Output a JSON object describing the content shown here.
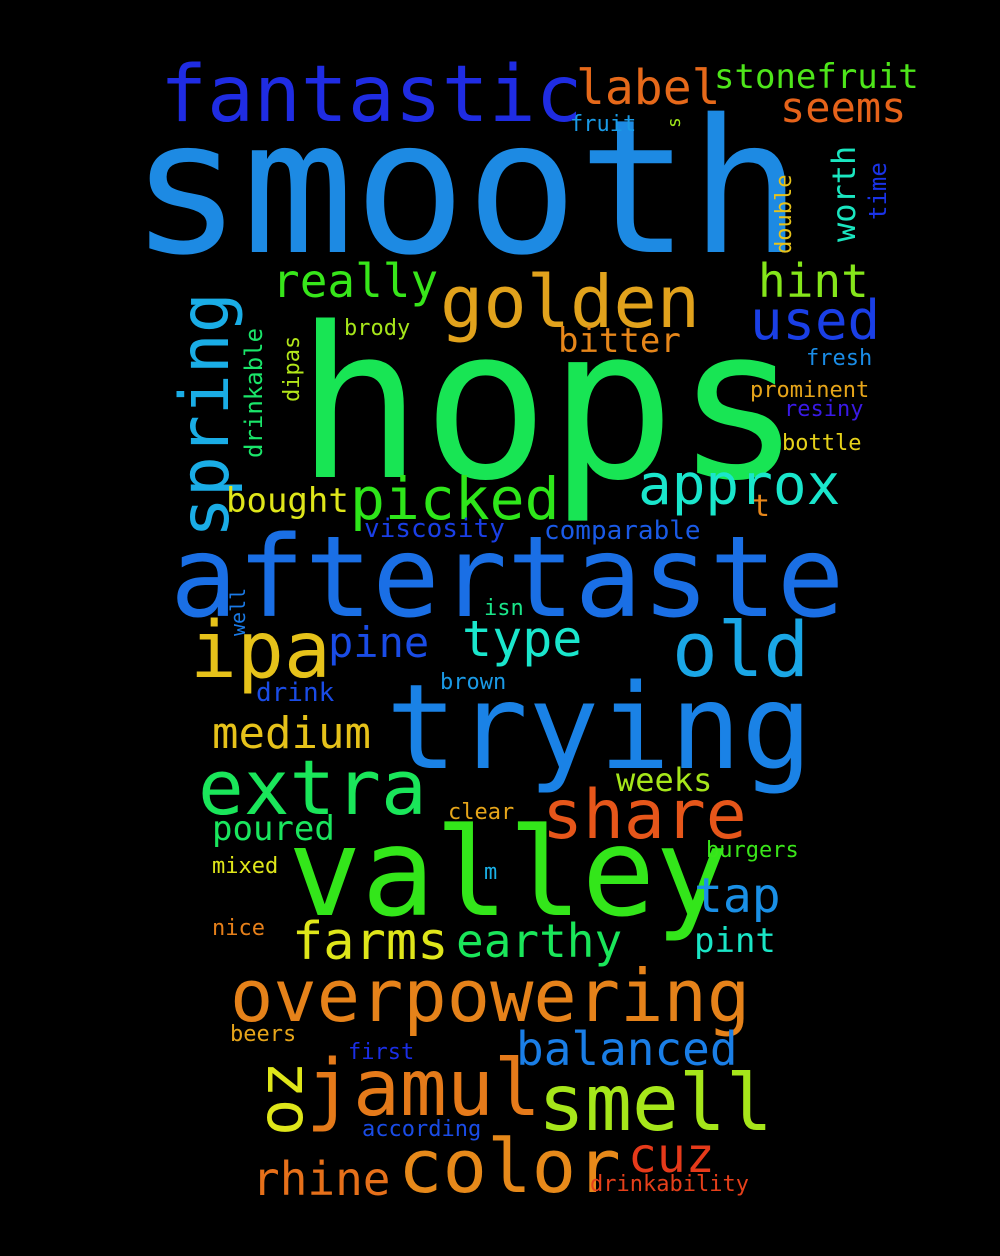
{
  "words": {
    "smooth": {
      "text": "smooth",
      "color": "#1d8ae3"
    },
    "hops": {
      "text": "hops",
      "color": "#18e554"
    },
    "aftertaste": {
      "text": "aftertaste",
      "color": "#1a6fe5"
    },
    "valley": {
      "text": "valley",
      "color": "#33e61a"
    },
    "trying": {
      "text": "trying",
      "color": "#1a82e6"
    },
    "fantastic": {
      "text": "fantastic",
      "color": "#1f2ce3"
    },
    "golden": {
      "text": "golden",
      "color": "#e1a21c"
    },
    "overpowering": {
      "text": "overpowering",
      "color": "#e5821a"
    },
    "jamul": {
      "text": "jamul",
      "color": "#e57a1a"
    },
    "smell": {
      "text": "smell",
      "color": "#a6e61a"
    },
    "color": {
      "text": "color",
      "color": "#e6891a"
    },
    "extra": {
      "text": "extra",
      "color": "#1ae65a"
    },
    "share": {
      "text": "share",
      "color": "#e6561a"
    },
    "spring": {
      "text": "spring",
      "color": "#1aade6"
    },
    "ipa": {
      "text": "ipa",
      "color": "#e6c21a"
    },
    "old": {
      "text": "old",
      "color": "#1aa7e6"
    },
    "approx": {
      "text": "approx",
      "color": "#1ae6cc"
    },
    "picked": {
      "text": "picked",
      "color": "#2ee61a"
    },
    "label": {
      "text": "label",
      "color": "#e6691a"
    },
    "stonefruit": {
      "text": "stonefruit",
      "color": "#4ee61a"
    },
    "seems": {
      "text": "seems",
      "color": "#e6631a"
    },
    "really": {
      "text": "really",
      "color": "#37e61a"
    },
    "hint": {
      "text": "hint",
      "color": "#85e61a"
    },
    "used": {
      "text": "used",
      "color": "#1a3fe6"
    },
    "oz": {
      "text": "oz",
      "color": "#dfe61a"
    },
    "balanced": {
      "text": "balanced",
      "color": "#1a7ee6"
    },
    "cuz": {
      "text": "cuz",
      "color": "#e63a1a"
    },
    "rhine": {
      "text": "rhine",
      "color": "#e6701a"
    },
    "farms": {
      "text": "farms",
      "color": "#dfe61a"
    },
    "earthy": {
      "text": "earthy",
      "color": "#1ae65a"
    },
    "tap": {
      "text": "tap",
      "color": "#1a90e6"
    },
    "pint": {
      "text": "pint",
      "color": "#1ae6c6"
    },
    "medium": {
      "text": "medium",
      "color": "#e6c21a"
    },
    "weeks": {
      "text": "weeks",
      "color": "#a6e61a"
    },
    "poured": {
      "text": "poured",
      "color": "#1ae65e"
    },
    "type": {
      "text": "type",
      "color": "#1ae6cc"
    },
    "pine": {
      "text": "pine",
      "color": "#1a4ce6"
    },
    "bought": {
      "text": "bought",
      "color": "#dfe61a"
    },
    "bitter": {
      "text": "bitter",
      "color": "#e6861a"
    },
    "worth": {
      "text": "worth",
      "color": "#1ae6c0"
    },
    "time": {
      "text": "time",
      "color": "#1a33e6"
    },
    "double": {
      "text": "double",
      "color": "#e6c21a"
    },
    "fruit": {
      "text": "fruit",
      "color": "#1a9ae6"
    },
    "s": {
      "text": "s",
      "color": "#9ee61a"
    },
    "fresh": {
      "text": "fresh",
      "color": "#1a8ce6"
    },
    "prominent": {
      "text": "prominent",
      "color": "#e6a51a"
    },
    "resiny": {
      "text": "resiny",
      "color": "#3a1ae6"
    },
    "bottle": {
      "text": "bottle",
      "color": "#e6d21a"
    },
    "brody": {
      "text": "brody",
      "color": "#a6e61a"
    },
    "drinkable": {
      "text": "drinkable",
      "color": "#1ae66a"
    },
    "dipas": {
      "text": "dipas",
      "color": "#b3e61a"
    },
    "viscosity": {
      "text": "viscosity",
      "color": "#1a3fe6"
    },
    "comparable": {
      "text": "comparable",
      "color": "#1a5ae6"
    },
    "t": {
      "text": "t",
      "color": "#e6861a"
    },
    "isn": {
      "text": "isn",
      "color": "#1ae68a"
    },
    "well": {
      "text": "well",
      "color": "#1a7ae6"
    },
    "drink": {
      "text": "drink",
      "color": "#1a4ce6"
    },
    "brown": {
      "text": "brown",
      "color": "#1a9ae6"
    },
    "clear": {
      "text": "clear",
      "color": "#e6a51a"
    },
    "burgers": {
      "text": "burgers",
      "color": "#3ae61a"
    },
    "mixed": {
      "text": "mixed",
      "color": "#dfe61a"
    },
    "m": {
      "text": "m",
      "color": "#1ab0e6"
    },
    "nice": {
      "text": "nice",
      "color": "#e6801a"
    },
    "beers": {
      "text": "beers",
      "color": "#e6a51a"
    },
    "first": {
      "text": "first",
      "color": "#1a2ee6"
    },
    "according": {
      "text": "according",
      "color": "#1a4ce6"
    },
    "drinkability": {
      "text": "drinkability",
      "color": "#e6401a"
    }
  }
}
